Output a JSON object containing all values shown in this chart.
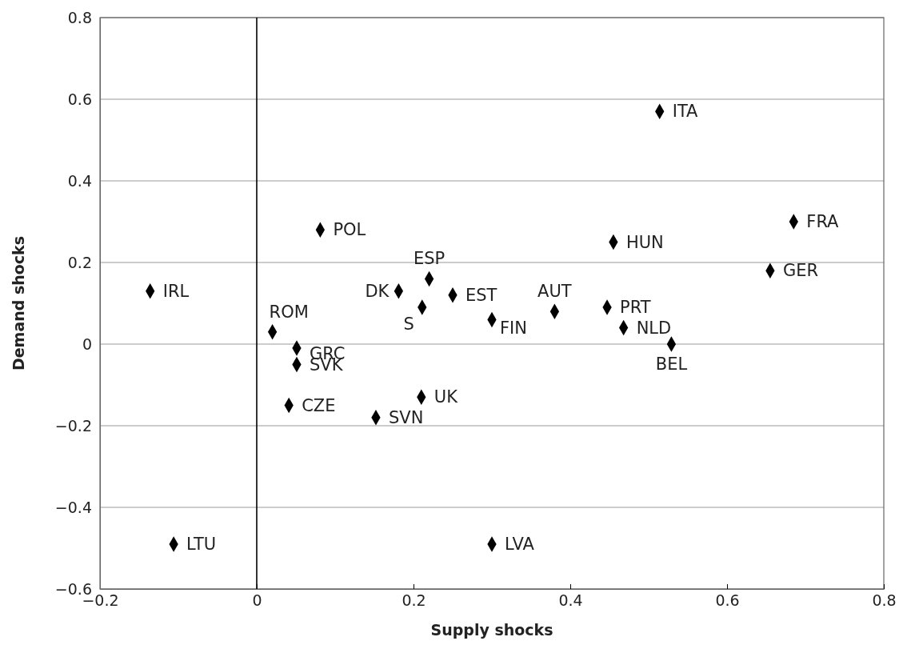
{
  "chart_data": {
    "type": "scatter",
    "xlabel": "Supply shocks",
    "ylabel": "Demand shocks",
    "xlim": [
      -0.2,
      0.8
    ],
    "ylim": [
      -0.6,
      0.8
    ],
    "xticks": [
      {
        "value": -0.2,
        "label": "−0.2"
      },
      0,
      0.2,
      0.4,
      0.6,
      0.8
    ],
    "yticks": [
      {
        "value": -0.6,
        "label": "−0.6"
      },
      {
        "value": -0.4,
        "label": "−0.4"
      },
      {
        "value": -0.2,
        "label": "−0.2"
      },
      0,
      0.2,
      0.4,
      0.6,
      0.8
    ],
    "grid": "y",
    "marker": "diamond",
    "ref_lines": [
      {
        "axis": "x",
        "value": 0,
        "color": "#000000"
      }
    ],
    "series": [
      {
        "color": "#000000",
        "x": [
          0.514,
          0.685,
          0.655,
          0.455,
          0.081,
          -0.136,
          0.22,
          0.181,
          0.25,
          0.211,
          0.38,
          0.447,
          0.468,
          0.3,
          0.529,
          0.02,
          0.051,
          0.051,
          0.041,
          0.21,
          0.152,
          -0.106,
          0.3
        ],
        "values": [
          0.57,
          0.3,
          0.18,
          0.25,
          0.28,
          0.13,
          0.16,
          0.13,
          0.12,
          0.09,
          0.08,
          0.09,
          0.04,
          0.06,
          0.0,
          0.03,
          -0.01,
          -0.05,
          -0.15,
          -0.13,
          -0.18,
          -0.49,
          -0.49
        ]
      }
    ],
    "annotations": [
      {
        "text": "ITA",
        "x": 0.514,
        "y": 0.57
      },
      {
        "text": "FRA",
        "x": 0.685,
        "y": 0.3
      },
      {
        "text": "GER",
        "x": 0.655,
        "y": 0.18
      },
      {
        "text": "HUN",
        "x": 0.455,
        "y": 0.25
      },
      {
        "text": "POL",
        "x": 0.081,
        "y": 0.28
      },
      {
        "text": "IRL",
        "x": -0.136,
        "y": 0.13
      },
      {
        "text": "ESP",
        "x": 0.22,
        "y": 0.16
      },
      {
        "text": "DK",
        "x": 0.181,
        "y": 0.13
      },
      {
        "text": "EST",
        "x": 0.25,
        "y": 0.12
      },
      {
        "text": "S",
        "x": 0.211,
        "y": 0.09
      },
      {
        "text": "AUT",
        "x": 0.38,
        "y": 0.08
      },
      {
        "text": "PRT",
        "x": 0.447,
        "y": 0.09
      },
      {
        "text": "NLD",
        "x": 0.468,
        "y": 0.04
      },
      {
        "text": "FIN",
        "x": 0.3,
        "y": 0.06
      },
      {
        "text": "BEL",
        "x": 0.529,
        "y": 0.0
      },
      {
        "text": "ROM",
        "x": 0.02,
        "y": 0.03
      },
      {
        "text": "GRC",
        "x": 0.051,
        "y": -0.01
      },
      {
        "text": "SVK",
        "x": 0.051,
        "y": -0.05
      },
      {
        "text": "CZE",
        "x": 0.041,
        "y": -0.15
      },
      {
        "text": "UK",
        "x": 0.21,
        "y": -0.13
      },
      {
        "text": "SVN",
        "x": 0.152,
        "y": -0.18
      },
      {
        "text": "LTU",
        "x": -0.106,
        "y": -0.49
      },
      {
        "text": "LVA",
        "x": 0.3,
        "y": -0.49
      }
    ]
  }
}
